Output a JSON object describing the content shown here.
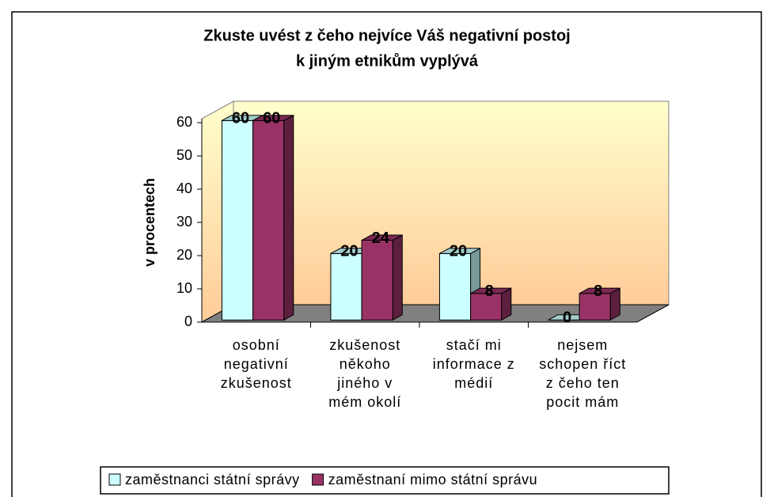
{
  "chart_data": {
    "type": "bar3d",
    "title": [
      "Zkuste uvést z čeho nejvíce Váš negativní postoj",
      "k jiným etnikům vyplývá"
    ],
    "ylabel": "v procentech",
    "categories": [
      "osobní negativní zkušenost",
      "zkušenost někoho jiného v mém okolí",
      "stačí mi informace z médií",
      "nejsem schopen říct z čeho ten pocit mám"
    ],
    "series": [
      {
        "name": "zaměstnanci státní správy",
        "color": "#ccffff",
        "values": [
          60,
          20,
          20,
          0
        ]
      },
      {
        "name": "zaměstnaní mimo státní správu",
        "color": "#993366",
        "values": [
          60,
          24,
          8,
          8
        ]
      }
    ],
    "ylim": [
      0,
      60
    ],
    "yticks": [
      0,
      10,
      20,
      30,
      40,
      50,
      60
    ],
    "grid": false,
    "legend": "bottom"
  }
}
